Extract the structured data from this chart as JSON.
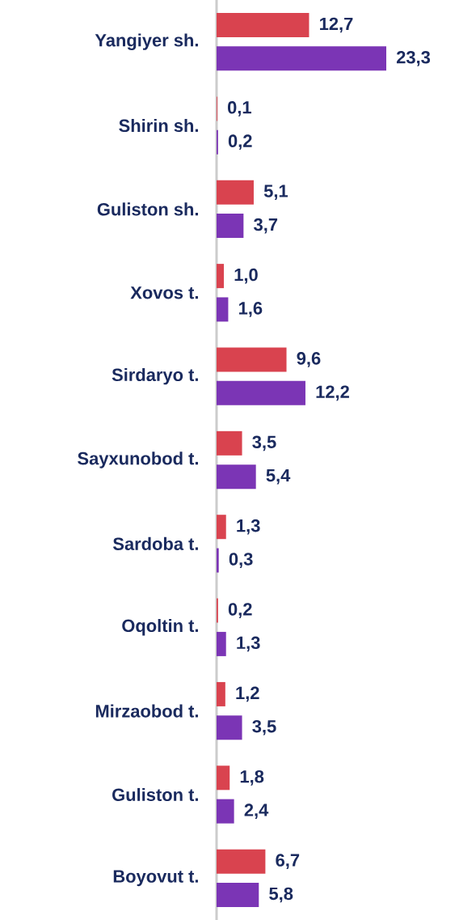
{
  "chart_data": {
    "type": "bar",
    "orientation": "horizontal",
    "categories": [
      "Yangiyer sh.",
      "Shirin sh.",
      "Guliston sh.",
      "Xovos t.",
      "Sirdaryo t.",
      "Sayxunobod t.",
      "Sardoba t.",
      "Oqoltin t.",
      "Mirzaobod t.",
      "Guliston t.",
      "Boyovut t."
    ],
    "series": [
      {
        "color": "#d9434f",
        "values": [
          12.7,
          0.1,
          5.1,
          1.0,
          9.6,
          3.5,
          1.3,
          0.2,
          1.2,
          1.8,
          6.7
        ],
        "value_labels": [
          "12,7",
          "0,1",
          "5,1",
          "1,0",
          "9,6",
          "3,5",
          "1,3",
          "0,2",
          "1,2",
          "1,8",
          "6,7"
        ]
      },
      {
        "color": "#7b35b5",
        "values": [
          23.3,
          0.2,
          3.7,
          1.6,
          12.2,
          5.4,
          0.3,
          1.3,
          3.5,
          2.4,
          5.8
        ],
        "value_labels": [
          "23,3",
          "0,2",
          "3,7",
          "1,6",
          "12,2",
          "5,4",
          "0,3",
          "1,3",
          "3,5",
          "2,4",
          "5,8"
        ]
      }
    ]
  }
}
